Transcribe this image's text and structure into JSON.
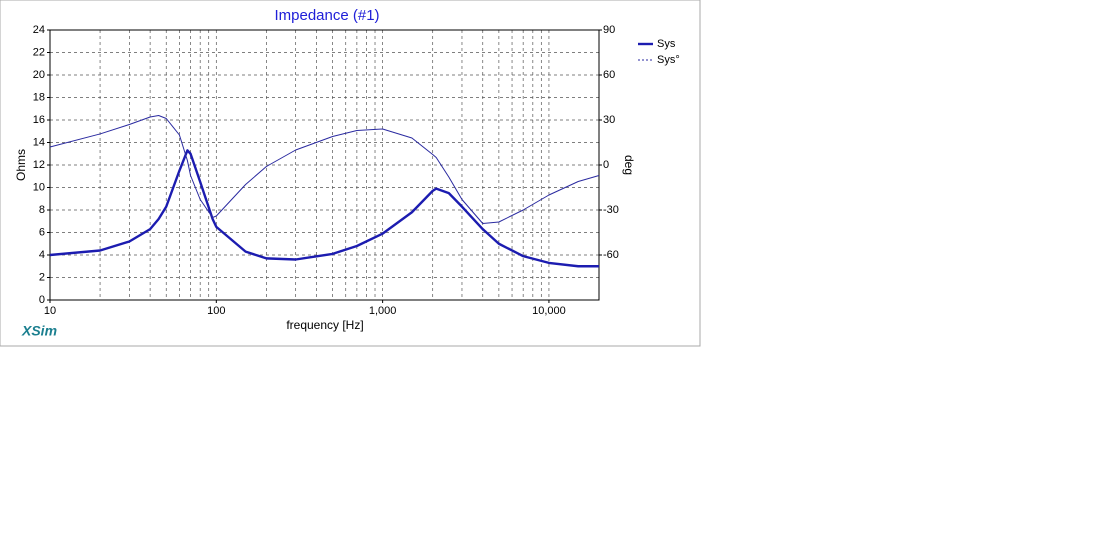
{
  "chart_data": {
    "type": "line",
    "title": "Impedance (#1)",
    "brand": "XSim",
    "xlabel": "frequency [Hz]",
    "ylabel": "Ohms",
    "y2label": "deg",
    "xscale": "log",
    "grid": true,
    "legend": "right",
    "x": [
      10,
      20,
      30,
      40,
      45,
      50,
      60,
      67,
      70,
      80,
      95,
      100,
      150,
      200,
      300,
      500,
      700,
      1000,
      1500,
      2000,
      2100,
      2500,
      3000,
      4000,
      5000,
      7000,
      10000,
      15000,
      20000
    ],
    "series": [
      {
        "name": "Sys",
        "color": "#1c1cb0",
        "width": 2.4,
        "values": [
          4.0,
          4.4,
          5.2,
          6.3,
          7.2,
          8.3,
          11.5,
          13.3,
          13.0,
          10.5,
          7.2,
          6.5,
          4.3,
          3.7,
          3.6,
          4.1,
          4.8,
          5.9,
          7.8,
          9.7,
          9.9,
          9.5,
          8.3,
          6.3,
          5.0,
          3.9,
          3.3,
          3.0,
          3.0
        ]
      },
      {
        "name": "Sys°",
        "color": "#2a2aa0",
        "width": 1,
        "axis": "y2",
        "values": [
          12,
          20.7,
          27,
          32,
          33,
          31,
          20,
          3,
          -7,
          -23,
          -35,
          -34,
          -13,
          -1,
          10,
          19,
          23,
          24,
          18,
          7,
          5,
          -8,
          -23,
          -39,
          -38,
          -30,
          -20,
          -11,
          -7
        ]
      }
    ],
    "xlim": [
      10,
      20000
    ],
    "xticks": [
      10,
      100,
      {
        "value": 1000,
        "label": "1,000"
      },
      {
        "value": 10000,
        "label": "10,000"
      }
    ],
    "ylim": [
      0,
      24
    ],
    "yticks": [
      0,
      2,
      4,
      6,
      8,
      10,
      12,
      14,
      16,
      18,
      20,
      22,
      24
    ],
    "y2lim": [
      -90,
      90
    ],
    "y2ticks": [
      -60,
      -30,
      0,
      30,
      60,
      90
    ]
  }
}
